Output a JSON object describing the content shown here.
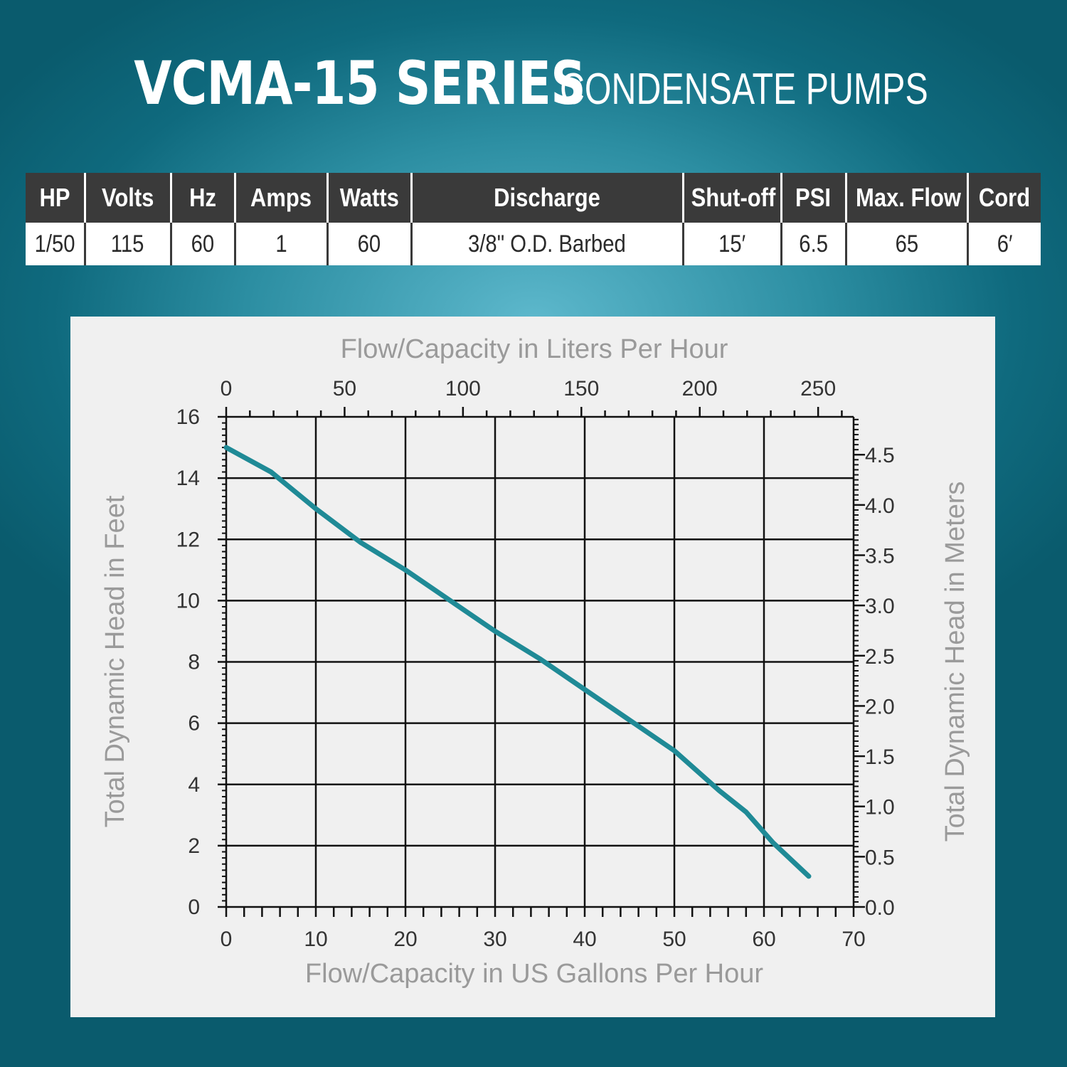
{
  "header": {
    "title_main": "VCMA-15 SERIES",
    "title_sub": "CONDENSATE PUMPS"
  },
  "specs_table": {
    "headers": [
      "HP",
      "Volts",
      "Hz",
      "Amps",
      "Watts",
      "Discharge",
      "Shut-off",
      "PSI",
      "Max. Flow",
      "Cord"
    ],
    "values": [
      "1/50",
      "115",
      "60",
      "1",
      "60",
      "3/8\" O.D. Barbed",
      "15′",
      "6.5",
      "65",
      "6′"
    ]
  },
  "colors": {
    "curve": "#1f8a96",
    "header_bg": "#3a3a3a",
    "axis_title": "#9a9a9a"
  },
  "chart_data": {
    "type": "line",
    "title": "",
    "xlabel": "Flow/Capacity in US Gallons Per Hour",
    "ylabel": "Total Dynamic Head in Feet",
    "x2label": "Flow/Capacity in Liters Per Hour",
    "y2label": "Total Dynamic Head in Meters",
    "xlim": [
      0,
      70
    ],
    "ylim": [
      0,
      16
    ],
    "x_ticks": [
      "0",
      "10",
      "20",
      "30",
      "40",
      "50",
      "60",
      "70"
    ],
    "y_ticks": [
      "0",
      "2",
      "4",
      "6",
      "8",
      "10",
      "12",
      "14",
      "16"
    ],
    "x2_ticks": [
      "0",
      "50",
      "100",
      "150",
      "200",
      "250"
    ],
    "y2_ticks": [
      "0.0",
      "0.5",
      "1.0",
      "1.5",
      "2.0",
      "2.5",
      "3.0",
      "3.5",
      "4.0",
      "4.5"
    ],
    "grid": true,
    "series": [
      {
        "x": [
          0,
          5,
          10,
          15,
          20,
          25,
          30,
          35,
          40,
          45,
          50,
          55,
          58,
          61,
          65
        ],
        "y": [
          15,
          14.2,
          13,
          11.9,
          11,
          10,
          9,
          8.1,
          7.1,
          6.1,
          5.1,
          3.8,
          3.1,
          2.1,
          1
        ]
      }
    ]
  }
}
